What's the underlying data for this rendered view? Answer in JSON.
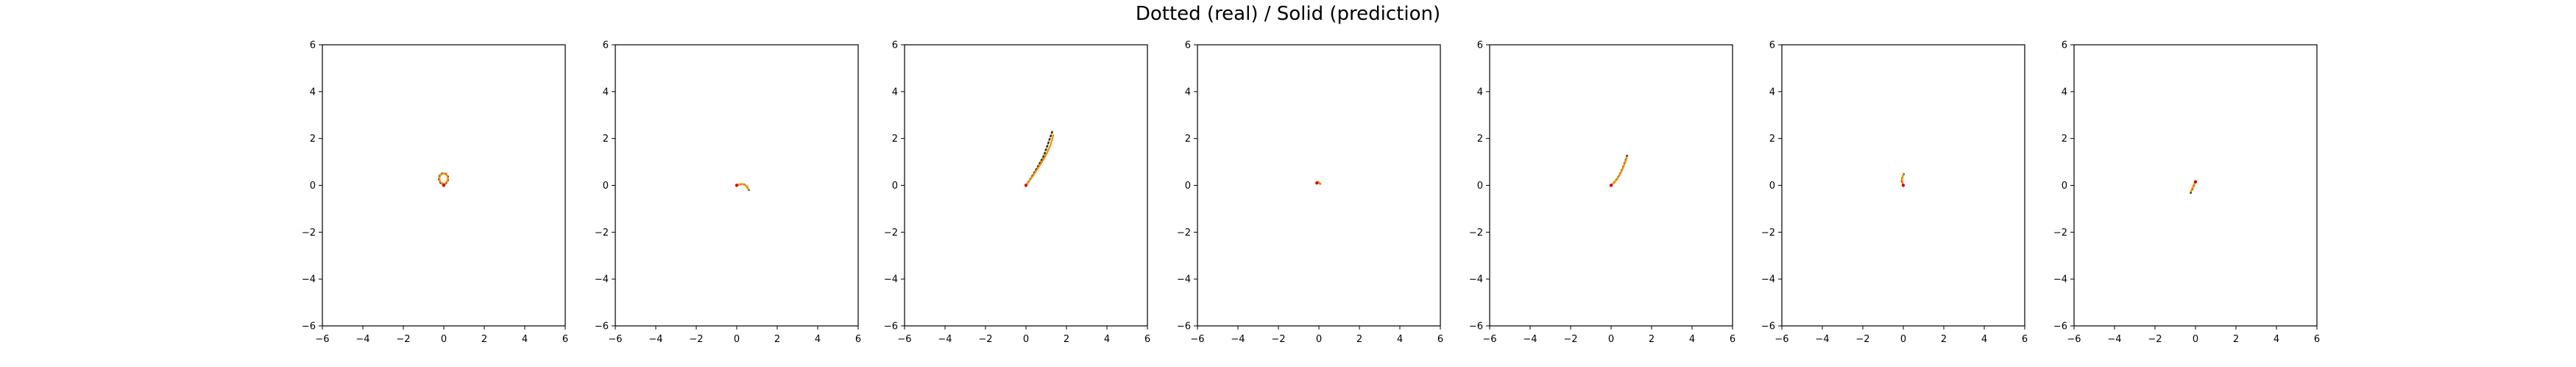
{
  "title": "Dotted (real) / Solid (prediction)",
  "colors": {
    "real": "#3a3a00",
    "prediction": "#ff8c00",
    "start_marker": "#e00000"
  },
  "chart_data": [
    {
      "type": "line",
      "xlim": [
        -6,
        6
      ],
      "ylim": [
        -6,
        6
      ],
      "xticks": [
        -6,
        -4,
        -2,
        0,
        2,
        4,
        6
      ],
      "yticks": [
        -6,
        -4,
        -2,
        0,
        2,
        4,
        6
      ],
      "series": [
        {
          "style": "dotted",
          "x": [
            0,
            -0.1,
            -0.2,
            -0.25,
            -0.2,
            -0.1,
            0,
            0.12,
            0.2,
            0.22,
            0.15,
            0.05,
            -0.05,
            -0.1
          ],
          "y": [
            0,
            0.05,
            0.15,
            0.3,
            0.42,
            0.5,
            0.52,
            0.48,
            0.38,
            0.25,
            0.12,
            0.05,
            0.05,
            0.1
          ]
        },
        {
          "style": "solid",
          "x": [
            0,
            -0.08,
            -0.18,
            -0.22,
            -0.18,
            -0.08,
            0.02,
            0.12,
            0.18,
            0.2,
            0.14,
            0.05
          ],
          "y": [
            0.02,
            0.07,
            0.17,
            0.3,
            0.42,
            0.49,
            0.5,
            0.46,
            0.37,
            0.25,
            0.14,
            0.08
          ]
        }
      ]
    },
    {
      "type": "line",
      "xlim": [
        -6,
        6
      ],
      "ylim": [
        -6,
        6
      ],
      "xticks": [
        -6,
        -4,
        -2,
        0,
        2,
        4,
        6
      ],
      "yticks": [
        -6,
        -4,
        -2,
        0,
        2,
        4,
        6
      ],
      "series": [
        {
          "style": "dotted",
          "x": [
            0,
            0.1,
            0.2,
            0.3,
            0.4,
            0.5,
            0.55,
            0.6
          ],
          "y": [
            0,
            0.02,
            0.05,
            0.06,
            0.02,
            -0.05,
            -0.12,
            -0.2
          ]
        },
        {
          "style": "solid",
          "x": [
            0,
            0.1,
            0.22,
            0.33,
            0.43,
            0.52,
            0.58
          ],
          "y": [
            0,
            0.03,
            0.06,
            0.05,
            0.0,
            -0.08,
            -0.17
          ]
        }
      ]
    },
    {
      "type": "line",
      "xlim": [
        -6,
        6
      ],
      "ylim": [
        -6,
        6
      ],
      "xticks": [
        -6,
        -4,
        -2,
        0,
        2,
        4,
        6
      ],
      "yticks": [
        -6,
        -4,
        -2,
        0,
        2,
        4,
        6
      ],
      "series": [
        {
          "style": "dotted",
          "x": [
            0,
            0.15,
            0.3,
            0.45,
            0.6,
            0.75,
            0.9,
            1.0,
            1.1,
            1.2,
            1.3
          ],
          "y": [
            0,
            0.18,
            0.38,
            0.6,
            0.82,
            1.05,
            1.3,
            1.55,
            1.8,
            2.05,
            2.3
          ]
        },
        {
          "style": "solid",
          "x": [
            0,
            0.18,
            0.36,
            0.54,
            0.72,
            0.9,
            1.05,
            1.18,
            1.28,
            1.35
          ],
          "y": [
            0,
            0.2,
            0.42,
            0.66,
            0.9,
            1.15,
            1.4,
            1.65,
            1.9,
            2.15
          ]
        }
      ]
    },
    {
      "type": "line",
      "xlim": [
        -6,
        6
      ],
      "ylim": [
        -6,
        6
      ],
      "xticks": [
        -6,
        -4,
        -2,
        0,
        2,
        4,
        6
      ],
      "yticks": [
        -6,
        -4,
        -2,
        0,
        2,
        4,
        6
      ],
      "series": [
        {
          "style": "dotted",
          "x": [
            -0.1,
            -0.05,
            0,
            0.05,
            0.1
          ],
          "y": [
            0.1,
            0.15,
            0.12,
            0.08,
            0.05
          ]
        },
        {
          "style": "solid",
          "x": [
            -0.08,
            -0.02,
            0.04,
            0.08
          ],
          "y": [
            0.12,
            0.15,
            0.1,
            0.06
          ]
        }
      ]
    },
    {
      "type": "line",
      "xlim": [
        -6,
        6
      ],
      "ylim": [
        -6,
        6
      ],
      "xticks": [
        -6,
        -4,
        -2,
        0,
        2,
        4,
        6
      ],
      "yticks": [
        -6,
        -4,
        -2,
        0,
        2,
        4,
        6
      ],
      "series": [
        {
          "style": "dotted",
          "x": [
            0,
            0.15,
            0.3,
            0.42,
            0.52,
            0.6,
            0.68,
            0.75,
            0.8
          ],
          "y": [
            0,
            0.12,
            0.28,
            0.45,
            0.62,
            0.8,
            0.98,
            1.15,
            1.3
          ]
        },
        {
          "style": "solid",
          "x": [
            0,
            0.18,
            0.33,
            0.45,
            0.55,
            0.64,
            0.72,
            0.78
          ],
          "y": [
            0,
            0.14,
            0.3,
            0.48,
            0.66,
            0.85,
            1.02,
            1.2
          ]
        }
      ]
    },
    {
      "type": "line",
      "xlim": [
        -6,
        6
      ],
      "ylim": [
        -6,
        6
      ],
      "xticks": [
        -6,
        -4,
        -2,
        0,
        2,
        4,
        6
      ],
      "yticks": [
        -6,
        -4,
        -2,
        0,
        2,
        4,
        6
      ],
      "series": [
        {
          "style": "dotted",
          "x": [
            0,
            -0.05,
            -0.08,
            -0.06,
            -0.02,
            0.02
          ],
          "y": [
            0,
            0.1,
            0.2,
            0.3,
            0.4,
            0.48
          ]
        },
        {
          "style": "solid",
          "x": [
            0,
            -0.04,
            -0.06,
            -0.04,
            0.0
          ],
          "y": [
            0,
            0.12,
            0.24,
            0.36,
            0.46
          ]
        }
      ]
    },
    {
      "type": "line",
      "xlim": [
        -6,
        6
      ],
      "ylim": [
        -6,
        6
      ],
      "xticks": [
        -6,
        -4,
        -2,
        0,
        2,
        4,
        6
      ],
      "yticks": [
        -6,
        -4,
        -2,
        0,
        2,
        4,
        6
      ],
      "series": [
        {
          "style": "dotted",
          "x": [
            0,
            -0.05,
            -0.1,
            -0.15,
            -0.2,
            -0.25
          ],
          "y": [
            0.15,
            0.05,
            -0.05,
            -0.15,
            -0.25,
            -0.35
          ]
        },
        {
          "style": "solid",
          "x": [
            0,
            -0.06,
            -0.12,
            -0.18,
            -0.22
          ],
          "y": [
            0.18,
            0.06,
            -0.06,
            -0.16,
            -0.26
          ]
        }
      ]
    }
  ]
}
